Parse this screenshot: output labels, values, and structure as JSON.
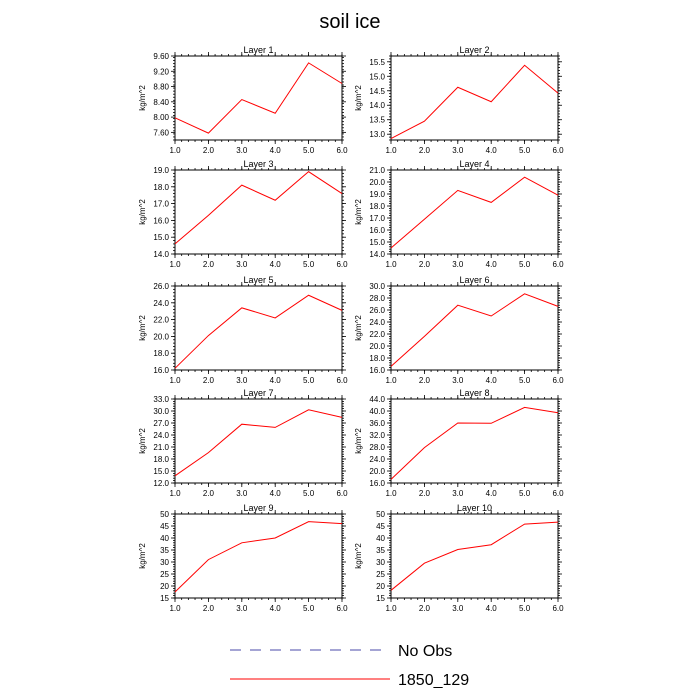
{
  "figure_title": "soil ice",
  "chart_data": [
    {
      "type": "line",
      "title": "Layer 1",
      "ylabel": "kg/m^2",
      "x": [
        1,
        2,
        3,
        4,
        5,
        6
      ],
      "xticks": [
        "1.0",
        "2.0",
        "3.0",
        "4.0",
        "5.0",
        "6.0"
      ],
      "ylim": [
        7.4,
        9.6
      ],
      "yticks": [
        "7.60",
        "8.00",
        "8.40",
        "8.80",
        "9.20",
        "9.60"
      ],
      "series": [
        {
          "name": "1850_129",
          "values": [
            7.98,
            7.58,
            8.46,
            8.1,
            9.42,
            8.88
          ]
        }
      ]
    },
    {
      "type": "line",
      "title": "Layer 2",
      "ylabel": "kg/m^2",
      "x": [
        1,
        2,
        3,
        4,
        5,
        6
      ],
      "xticks": [
        "1.0",
        "2.0",
        "3.0",
        "4.0",
        "5.0",
        "6.0"
      ],
      "ylim": [
        12.8,
        15.7
      ],
      "yticks": [
        "13.0",
        "13.5",
        "14.0",
        "14.5",
        "15.0",
        "15.5"
      ],
      "series": [
        {
          "name": "1850_129",
          "values": [
            12.85,
            13.45,
            14.62,
            14.12,
            15.38,
            14.42
          ]
        }
      ]
    },
    {
      "type": "line",
      "title": "Layer 3",
      "ylabel": "kg/m^2",
      "x": [
        1,
        2,
        3,
        4,
        5,
        6
      ],
      "xticks": [
        "1.0",
        "2.0",
        "3.0",
        "4.0",
        "5.0",
        "6.0"
      ],
      "ylim": [
        14.0,
        19.0
      ],
      "yticks": [
        "14.0",
        "15.0",
        "16.0",
        "17.0",
        "18.0",
        "19.0"
      ],
      "series": [
        {
          "name": "1850_129",
          "values": [
            14.6,
            16.3,
            18.1,
            17.2,
            18.9,
            17.6
          ]
        }
      ]
    },
    {
      "type": "line",
      "title": "Layer 4",
      "ylabel": "kg/m^2",
      "x": [
        1,
        2,
        3,
        4,
        5,
        6
      ],
      "xticks": [
        "1.0",
        "2.0",
        "3.0",
        "4.0",
        "5.0",
        "6.0"
      ],
      "ylim": [
        14.0,
        21.0
      ],
      "yticks": [
        "14.0",
        "15.0",
        "16.0",
        "17.0",
        "18.0",
        "19.0",
        "20.0",
        "21.0"
      ],
      "series": [
        {
          "name": "1850_129",
          "values": [
            14.5,
            16.9,
            19.3,
            18.3,
            20.4,
            18.9
          ]
        }
      ]
    },
    {
      "type": "line",
      "title": "Layer 5",
      "ylabel": "kg/m^2",
      "x": [
        1,
        2,
        3,
        4,
        5,
        6
      ],
      "xticks": [
        "1.0",
        "2.0",
        "3.0",
        "4.0",
        "5.0",
        "6.0"
      ],
      "ylim": [
        16.0,
        26.0
      ],
      "yticks": [
        "16.0",
        "18.0",
        "20.0",
        "22.0",
        "24.0",
        "26.0"
      ],
      "series": [
        {
          "name": "1850_129",
          "values": [
            16.2,
            20.1,
            23.4,
            22.2,
            24.9,
            23.1
          ]
        }
      ]
    },
    {
      "type": "line",
      "title": "Layer 6",
      "ylabel": "kg/m^2",
      "x": [
        1,
        2,
        3,
        4,
        5,
        6
      ],
      "xticks": [
        "1.0",
        "2.0",
        "3.0",
        "4.0",
        "5.0",
        "6.0"
      ],
      "ylim": [
        16.0,
        30.0
      ],
      "yticks": [
        "16.0",
        "18.0",
        "20.0",
        "22.0",
        "24.0",
        "26.0",
        "28.0",
        "30.0"
      ],
      "series": [
        {
          "name": "1850_129",
          "values": [
            16.6,
            21.6,
            26.8,
            25.0,
            28.7,
            26.6
          ]
        }
      ]
    },
    {
      "type": "line",
      "title": "Layer 7",
      "ylabel": "kg/m^2",
      "x": [
        1,
        2,
        3,
        4,
        5,
        6
      ],
      "xticks": [
        "1.0",
        "2.0",
        "3.0",
        "4.0",
        "5.0",
        "6.0"
      ],
      "ylim": [
        12.0,
        33.0
      ],
      "yticks": [
        "12.0",
        "15.0",
        "18.0",
        "21.0",
        "24.0",
        "27.0",
        "30.0",
        "33.0"
      ],
      "series": [
        {
          "name": "1850_129",
          "values": [
            13.8,
            19.6,
            26.7,
            25.9,
            30.3,
            28.4
          ]
        }
      ]
    },
    {
      "type": "line",
      "title": "Layer 8",
      "ylabel": "kg/m^2",
      "x": [
        1,
        2,
        3,
        4,
        5,
        6
      ],
      "xticks": [
        "1.0",
        "2.0",
        "3.0",
        "4.0",
        "5.0",
        "6.0"
      ],
      "ylim": [
        16.0,
        44.0
      ],
      "yticks": [
        "16.0",
        "20.0",
        "24.0",
        "28.0",
        "32.0",
        "36.0",
        "40.0",
        "44.0"
      ],
      "series": [
        {
          "name": "1850_129",
          "values": [
            17.2,
            27.8,
            36.0,
            35.9,
            41.2,
            39.4
          ]
        }
      ]
    },
    {
      "type": "line",
      "title": "Layer 9",
      "ylabel": "kg/m^2",
      "x": [
        1,
        2,
        3,
        4,
        5,
        6
      ],
      "xticks": [
        "1.0",
        "2.0",
        "3.0",
        "4.0",
        "5.0",
        "6.0"
      ],
      "ylim": [
        15,
        50
      ],
      "yticks": [
        "15",
        "20",
        "25",
        "30",
        "35",
        "40",
        "45",
        "50"
      ],
      "series": [
        {
          "name": "1850_129",
          "values": [
            17.5,
            31.0,
            38.0,
            40.0,
            46.8,
            46.0
          ]
        }
      ]
    },
    {
      "type": "line",
      "title": "Layer 10",
      "ylabel": "kg/m^2",
      "x": [
        1,
        2,
        3,
        4,
        5,
        6
      ],
      "xticks": [
        "1.0",
        "2.0",
        "3.0",
        "4.0",
        "5.0",
        "6.0"
      ],
      "ylim": [
        15,
        50
      ],
      "yticks": [
        "15",
        "20",
        "25",
        "30",
        "35",
        "40",
        "45",
        "50"
      ],
      "series": [
        {
          "name": "1850_129",
          "values": [
            18.2,
            29.5,
            35.2,
            37.2,
            45.8,
            46.6
          ]
        }
      ]
    }
  ],
  "legend": [
    {
      "label": "No Obs",
      "color": "#4a4aa8",
      "style": "dashed"
    },
    {
      "label": "1850_129",
      "color": "#ff0000",
      "style": "solid"
    }
  ]
}
